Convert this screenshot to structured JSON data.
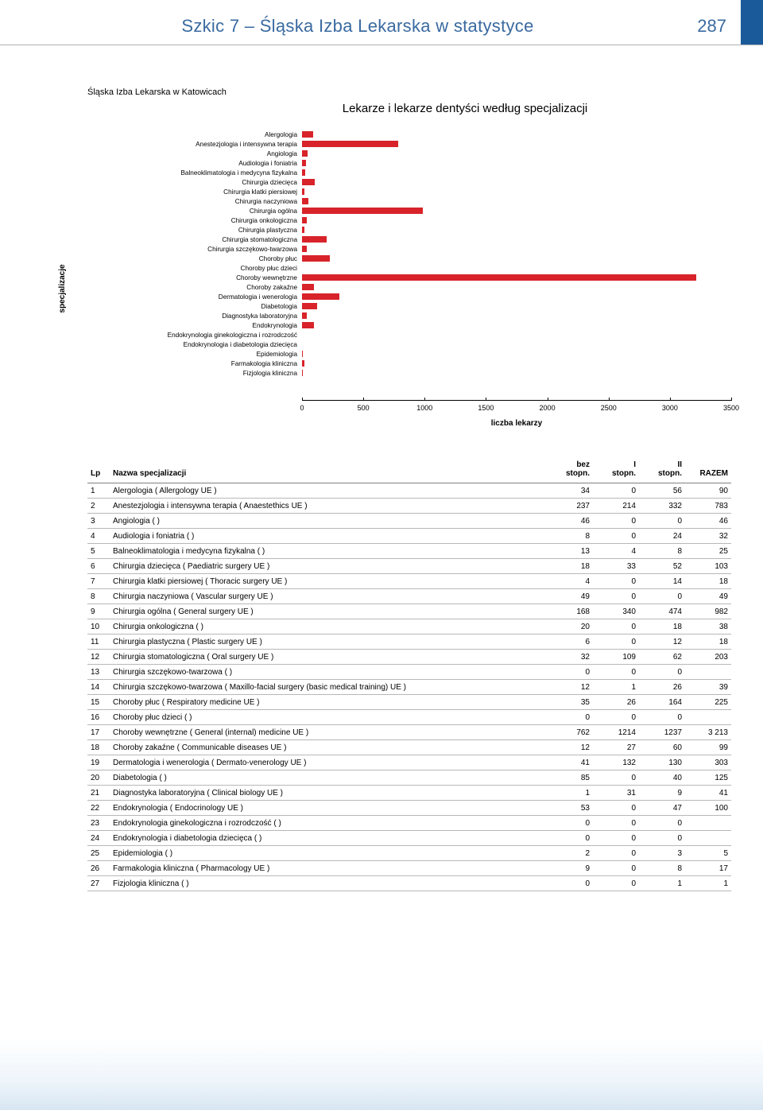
{
  "header": {
    "title": "Szkic 7 – Śląska Izba Lekarska w statystyce",
    "page_number": "287",
    "title_color": "#3a6aa0",
    "bar_color": "#1a5a9a"
  },
  "subheading": "Śląska Izba Lekarska w Katowicach",
  "chart": {
    "type": "bar-horizontal",
    "title": "Lekarze i lekarze dentyści według specjalizacji",
    "y_axis_label": "specjalizacje",
    "x_axis_label": "liczba lekarzy",
    "bar_color": "#d8232a",
    "background_color": "#ffffff",
    "xlim": [
      0,
      3500
    ],
    "xticks": [
      0,
      500,
      1000,
      1500,
      2000,
      2500,
      3000,
      3500
    ],
    "label_fontsize": 8.2,
    "axis_fontsize": 9,
    "categories": [
      "Alergologia",
      "Anestezjologia i intensywna terapia",
      "Angiologia",
      "Audiologia i foniatria",
      "Balneoklimatologia i medycyna fizykalna",
      "Chirurgia dziecięca",
      "Chirurgia klatki piersiowej",
      "Chirurgia naczyniowa",
      "Chirurgia ogólna",
      "Chirurgia onkologiczna",
      "Chirurgia plastyczna",
      "Chirurgia stomatologiczna",
      "Chirurgia szczękowo-twarzowa",
      "Choroby płuc",
      "Choroby płuc dzieci",
      "Choroby wewnętrzne",
      "Choroby zakaźne",
      "Dermatologia i wenerologia",
      "Diabetologia",
      "Diagnostyka laboratoryjna",
      "Endokrynologia",
      "Endokrynologia ginekologiczna i rozrodczość",
      "Endokrynologia i diabetologia dziecięca",
      "Epidemiologia",
      "Farmakologia kliniczna",
      "Fizjologia kliniczna"
    ],
    "values": [
      90,
      783,
      46,
      32,
      25,
      103,
      18,
      49,
      982,
      38,
      18,
      203,
      39,
      225,
      0,
      3213,
      99,
      303,
      125,
      41,
      100,
      0,
      0,
      5,
      17,
      1
    ]
  },
  "table": {
    "columns": {
      "lp": "Lp",
      "name": "Nazwa specjalizacji",
      "c1_line1": "bez",
      "c1_line2": "stopn.",
      "c2_line1": "I",
      "c2_line2": "stopn.",
      "c3_line1": "II",
      "c3_line2": "stopn.",
      "c4": "RAZEM"
    },
    "rows": [
      {
        "lp": "1",
        "name": "Alergologia ( Allergology UE )",
        "a": "34",
        "b": "0",
        "c": "56",
        "d": "90"
      },
      {
        "lp": "2",
        "name": "Anestezjologia i intensywna terapia ( Anaestethics UE )",
        "a": "237",
        "b": "214",
        "c": "332",
        "d": "783"
      },
      {
        "lp": "3",
        "name": "Angiologia (  )",
        "a": "46",
        "b": "0",
        "c": "0",
        "d": "46"
      },
      {
        "lp": "4",
        "name": "Audiologia i foniatria (  )",
        "a": "8",
        "b": "0",
        "c": "24",
        "d": "32"
      },
      {
        "lp": "5",
        "name": "Balneoklimatologia i medycyna fizykalna (  )",
        "a": "13",
        "b": "4",
        "c": "8",
        "d": "25"
      },
      {
        "lp": "6",
        "name": "Chirurgia dziecięca ( Paediatric surgery UE )",
        "a": "18",
        "b": "33",
        "c": "52",
        "d": "103"
      },
      {
        "lp": "7",
        "name": "Chirurgia klatki piersiowej ( Thoracic surgery UE )",
        "a": "4",
        "b": "0",
        "c": "14",
        "d": "18"
      },
      {
        "lp": "8",
        "name": "Chirurgia naczyniowa ( Vascular surgery UE )",
        "a": "49",
        "b": "0",
        "c": "0",
        "d": "49"
      },
      {
        "lp": "9",
        "name": "Chirurgia ogólna ( General surgery UE )",
        "a": "168",
        "b": "340",
        "c": "474",
        "d": "982"
      },
      {
        "lp": "10",
        "name": "Chirurgia onkologiczna (  )",
        "a": "20",
        "b": "0",
        "c": "18",
        "d": "38"
      },
      {
        "lp": "11",
        "name": "Chirurgia plastyczna ( Plastic surgery UE )",
        "a": "6",
        "b": "0",
        "c": "12",
        "d": "18"
      },
      {
        "lp": "12",
        "name": "Chirurgia stomatologiczna ( Oral surgery UE )",
        "a": "32",
        "b": "109",
        "c": "62",
        "d": "203"
      },
      {
        "lp": "13",
        "name": "Chirurgia szczękowo-twarzowa (  )",
        "a": "0",
        "b": "0",
        "c": "0",
        "d": ""
      },
      {
        "lp": "14",
        "name": "Chirurgia szczękowo-twarzowa ( Maxillo-facial surgery (basic medical training) UE )",
        "a": "12",
        "b": "1",
        "c": "26",
        "d": "39"
      },
      {
        "lp": "15",
        "name": "Choroby płuc ( Respiratory medicine UE )",
        "a": "35",
        "b": "26",
        "c": "164",
        "d": "225"
      },
      {
        "lp": "16",
        "name": "Choroby płuc dzieci (  )",
        "a": "0",
        "b": "0",
        "c": "0",
        "d": ""
      },
      {
        "lp": "17",
        "name": "Choroby wewnętrzne ( General (internal) medicine UE )",
        "a": "762",
        "b": "1214",
        "c": "1237",
        "d": "3 213"
      },
      {
        "lp": "18",
        "name": "Choroby zakaźne ( Communicable diseases UE )",
        "a": "12",
        "b": "27",
        "c": "60",
        "d": "99"
      },
      {
        "lp": "19",
        "name": "Dermatologia i wenerologia ( Dermato-venerology UE )",
        "a": "41",
        "b": "132",
        "c": "130",
        "d": "303"
      },
      {
        "lp": "20",
        "name": "Diabetologia (  )",
        "a": "85",
        "b": "0",
        "c": "40",
        "d": "125"
      },
      {
        "lp": "21",
        "name": "Diagnostyka laboratoryjna ( Clinical biology UE )",
        "a": "1",
        "b": "31",
        "c": "9",
        "d": "41"
      },
      {
        "lp": "22",
        "name": "Endokrynologia ( Endocrinology UE )",
        "a": "53",
        "b": "0",
        "c": "47",
        "d": "100"
      },
      {
        "lp": "23",
        "name": "Endokrynologia ginekologiczna i rozrodczość (  )",
        "a": "0",
        "b": "0",
        "c": "0",
        "d": ""
      },
      {
        "lp": "24",
        "name": "Endokrynologia i diabetologia dziecięca (  )",
        "a": "0",
        "b": "0",
        "c": "0",
        "d": ""
      },
      {
        "lp": "25",
        "name": "Epidemiologia (  )",
        "a": "2",
        "b": "0",
        "c": "3",
        "d": "5"
      },
      {
        "lp": "26",
        "name": "Farmakologia kliniczna ( Pharmacology UE )",
        "a": "9",
        "b": "0",
        "c": "8",
        "d": "17"
      },
      {
        "lp": "27",
        "name": "Fizjologia kliniczna (  )",
        "a": "0",
        "b": "0",
        "c": "1",
        "d": "1"
      }
    ]
  }
}
